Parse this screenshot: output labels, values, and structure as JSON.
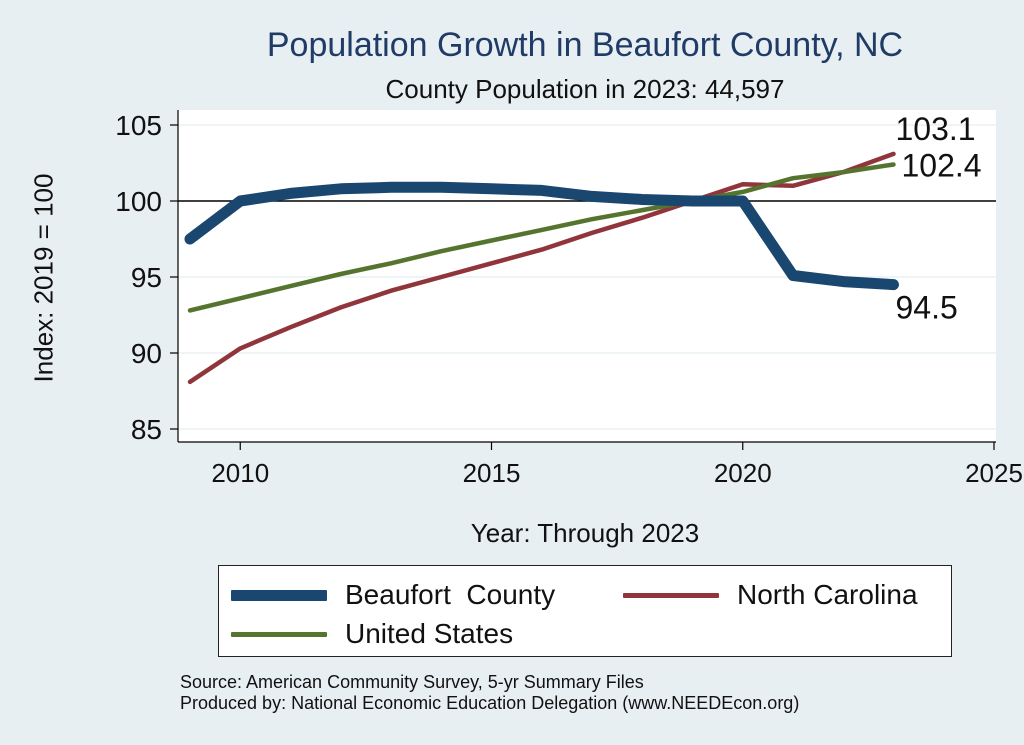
{
  "title": "Population Growth in Beaufort County, NC",
  "subtitle": "County Population in 2023: 44,597",
  "footer": {
    "source": "Source: American Community Survey, 5-yr Summary Files",
    "produced_by": "Produced by: National Economic Education Delegation (www.NEEDEcon.org)"
  },
  "chart_data": {
    "type": "line",
    "xlabel": "Year: Through 2023",
    "ylabel": "Index: 2019 = 100",
    "xlim": [
      2009,
      2025
    ],
    "ylim": [
      85,
      105
    ],
    "x_ticks": [
      2010,
      2015,
      2020,
      2025
    ],
    "y_ticks": [
      85,
      90,
      95,
      100,
      105
    ],
    "reference_line": 100,
    "grid": true,
    "legend_position": "bottom",
    "x": [
      2009,
      2010,
      2011,
      2012,
      2013,
      2014,
      2015,
      2016,
      2017,
      2018,
      2019,
      2020,
      2021,
      2022,
      2023
    ],
    "series": [
      {
        "name": "Beaufort  County",
        "color": "#1a476f",
        "values": [
          97.5,
          100.0,
          100.5,
          100.8,
          100.9,
          100.9,
          100.8,
          100.7,
          100.3,
          100.1,
          100.0,
          100.0,
          95.1,
          94.7,
          94.5
        ],
        "end_label": "94.5"
      },
      {
        "name": "North Carolina",
        "color": "#90353b",
        "values": [
          88.1,
          90.3,
          91.7,
          93.0,
          94.1,
          95.0,
          95.9,
          96.8,
          97.9,
          98.9,
          100.0,
          101.1,
          101.0,
          101.9,
          103.1
        ],
        "end_label": "103.1"
      },
      {
        "name": "United States",
        "color": "#55752f",
        "values": [
          92.8,
          93.6,
          94.4,
          95.2,
          95.9,
          96.7,
          97.4,
          98.1,
          98.8,
          99.4,
          100.0,
          100.6,
          101.5,
          101.9,
          102.4
        ],
        "end_label": "102.4"
      }
    ]
  }
}
